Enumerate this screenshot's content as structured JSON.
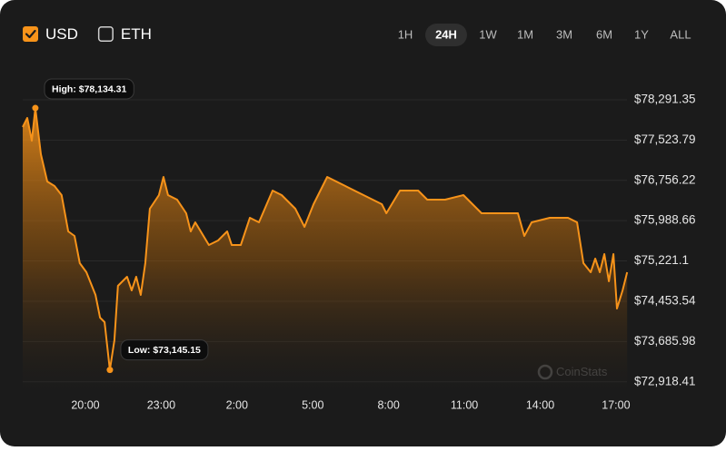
{
  "controls": {
    "currencies": [
      {
        "label": "USD",
        "checked": true
      },
      {
        "label": "ETH",
        "checked": false
      }
    ],
    "ranges": [
      "1H",
      "24H",
      "1W",
      "1M",
      "3M",
      "6M",
      "1Y",
      "ALL"
    ],
    "selected_range": "24H"
  },
  "watermark": "CoinStats",
  "chart_data": {
    "type": "area",
    "color": "#f7931a",
    "grid": true,
    "x": [
      17.52,
      17.7,
      17.88,
      18.02,
      18.24,
      18.49,
      18.78,
      19.06,
      19.32,
      19.57,
      19.78,
      20.04,
      20.4,
      20.58,
      20.76,
      20.97,
      21.15,
      21.29,
      21.65,
      21.83,
      22.01,
      22.19,
      22.37,
      22.55,
      22.91,
      23.09,
      23.27,
      23.63,
      23.99,
      24.17,
      24.35,
      24.89,
      25.25,
      25.61,
      25.79,
      26.15,
      26.51,
      26.87,
      27.41,
      27.77,
      28.31,
      28.67,
      29.03,
      29.57,
      30.29,
      31.01,
      31.73,
      31.91,
      32.45,
      33.17,
      33.53,
      34.24,
      34.96,
      35.68,
      36.4,
      37.12,
      37.37,
      37.66,
      38.38,
      39.1,
      39.46,
      39.71,
      40.0,
      40.18,
      40.36,
      40.54,
      40.72,
      40.9,
      41.04,
      41.26,
      41.44
    ],
    "values": [
      77772,
      77945,
      77513,
      78134.31,
      77254,
      76735,
      76649,
      76476,
      75784,
      75698,
      75179,
      75006,
      74574,
      74142,
      74055,
      73145.15,
      73709,
      74747,
      74920,
      74660,
      74920,
      74574,
      75179,
      76216,
      76476,
      76821,
      76476,
      76389,
      76130,
      75784,
      75957,
      75525,
      75611,
      75784,
      75525,
      75525,
      76043,
      75957,
      76562,
      76476,
      76216,
      75870,
      76303,
      76821,
      76649,
      76476,
      76303,
      76130,
      76562,
      76562,
      76389,
      76389,
      76476,
      76130,
      76130,
      76130,
      75698,
      75957,
      76043,
      76043,
      75957,
      75179,
      75006,
      75265,
      75006,
      75352,
      74833,
      75352,
      74314,
      74660,
      75006
    ],
    "xlim": [
      17.52,
      41.47
    ],
    "xticks": [
      {
        "value": 20,
        "label": "20:00"
      },
      {
        "value": 23,
        "label": "23:00"
      },
      {
        "value": 26,
        "label": "2:00"
      },
      {
        "value": 29,
        "label": "5:00"
      },
      {
        "value": 32,
        "label": "8:00"
      },
      {
        "value": 35,
        "label": "11:00"
      },
      {
        "value": 38,
        "label": "14:00"
      },
      {
        "value": 41,
        "label": "17:00"
      }
    ],
    "ylim": [
      72724,
      78723
    ],
    "yticks": [
      {
        "value": 78291.35,
        "label": "$78,291.35"
      },
      {
        "value": 77523.79,
        "label": "$77,523.79"
      },
      {
        "value": 76756.22,
        "label": "$76,756.22"
      },
      {
        "value": 75988.66,
        "label": "$75,988.66"
      },
      {
        "value": 75221.1,
        "label": "$75,221.1"
      },
      {
        "value": 74453.54,
        "label": "$74,453.54"
      },
      {
        "value": 73685.98,
        "label": "$73,685.98"
      },
      {
        "value": 72918.41,
        "label": "$72,918.41"
      }
    ],
    "annotations": [
      {
        "text": "High: $78,134.31",
        "x": 18.02,
        "value": 78134.31
      },
      {
        "text": "Low: $73,145.15",
        "x": 20.97,
        "value": 73145.15
      }
    ]
  }
}
